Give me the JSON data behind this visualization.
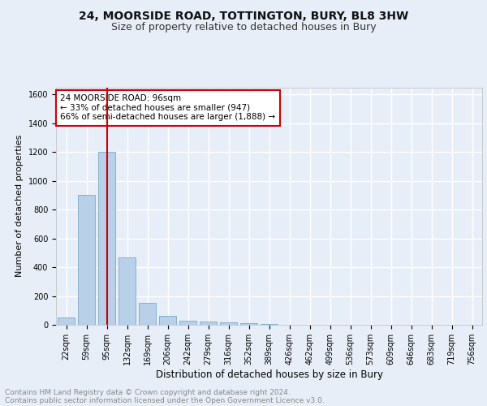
{
  "title1": "24, MOORSIDE ROAD, TOTTINGTON, BURY, BL8 3HW",
  "title2": "Size of property relative to detached houses in Bury",
  "xlabel": "Distribution of detached houses by size in Bury",
  "ylabel": "Number of detached properties",
  "categories": [
    "22sqm",
    "59sqm",
    "95sqm",
    "132sqm",
    "169sqm",
    "206sqm",
    "242sqm",
    "279sqm",
    "316sqm",
    "352sqm",
    "389sqm",
    "426sqm",
    "462sqm",
    "499sqm",
    "536sqm",
    "573sqm",
    "609sqm",
    "646sqm",
    "683sqm",
    "719sqm",
    "756sqm"
  ],
  "values": [
    50,
    900,
    1200,
    470,
    155,
    60,
    30,
    20,
    15,
    10,
    5,
    0,
    0,
    0,
    0,
    0,
    0,
    0,
    0,
    0,
    0
  ],
  "bar_color": "#b8d0e8",
  "bar_edge_color": "#7aaac8",
  "vline_x": 2,
  "vline_color": "#cc0000",
  "annotation_text": "24 MOORSIDE ROAD: 96sqm\n← 33% of detached houses are smaller (947)\n66% of semi-detached houses are larger (1,888) →",
  "annotation_box_facecolor": "#ffffff",
  "annotation_box_edgecolor": "#cc0000",
  "ylim": [
    0,
    1650
  ],
  "yticks": [
    0,
    200,
    400,
    600,
    800,
    1000,
    1200,
    1400,
    1600
  ],
  "footer1": "Contains HM Land Registry data © Crown copyright and database right 2024.",
  "footer2": "Contains public sector information licensed under the Open Government Licence v3.0.",
  "bg_color": "#e8eef8",
  "plot_bg_color": "#e8eef8",
  "grid_color": "#ffffff",
  "title1_fontsize": 10,
  "title2_fontsize": 9,
  "xlabel_fontsize": 8.5,
  "ylabel_fontsize": 8,
  "tick_fontsize": 7,
  "annotation_fontsize": 7.5,
  "footer_fontsize": 6.5
}
